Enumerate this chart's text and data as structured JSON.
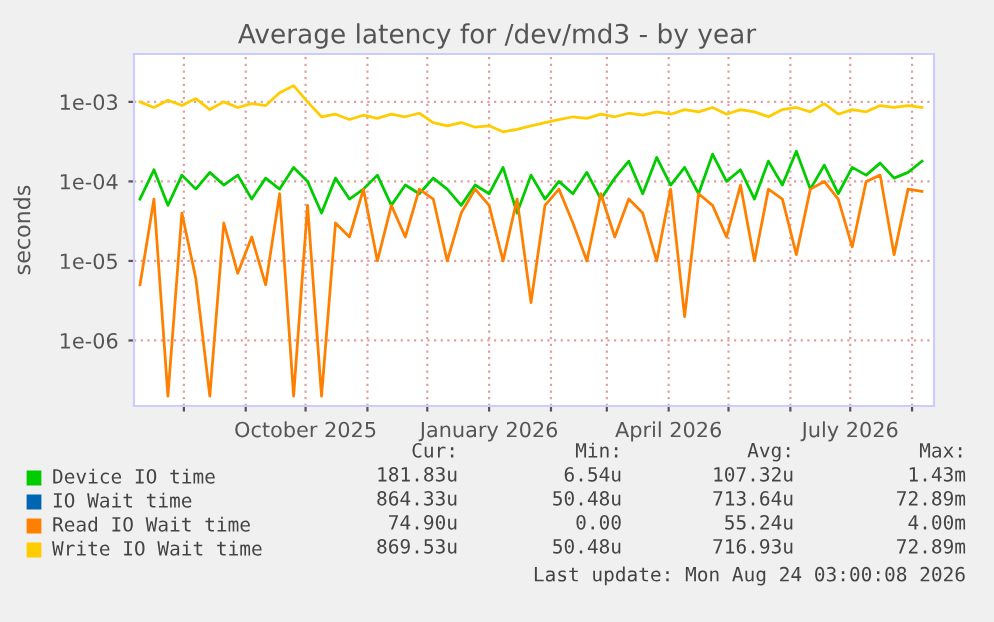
{
  "chart_data": {
    "type": "line",
    "title": "Average latency for /dev/md3 - by year",
    "ylabel": "seconds",
    "log": true,
    "grid": true,
    "legend": "bottom",
    "x": [
      "2025-07-10",
      "2025-07-17",
      "2025-07-24",
      "2025-07-31",
      "2025-08-07",
      "2025-08-14",
      "2025-08-21",
      "2025-08-28",
      "2025-09-04",
      "2025-09-11",
      "2025-09-18",
      "2025-09-25",
      "2025-10-02",
      "2025-10-09",
      "2025-10-16",
      "2025-10-23",
      "2025-10-30",
      "2025-11-06",
      "2025-11-13",
      "2025-11-20",
      "2025-11-27",
      "2025-12-04",
      "2025-12-11",
      "2025-12-18",
      "2025-12-25",
      "2026-01-01",
      "2026-01-08",
      "2026-01-15",
      "2026-01-22",
      "2026-01-29",
      "2026-02-05",
      "2026-02-12",
      "2026-02-19",
      "2026-02-26",
      "2026-03-05",
      "2026-03-12",
      "2026-03-19",
      "2026-03-26",
      "2026-04-02",
      "2026-04-09",
      "2026-04-16",
      "2026-04-23",
      "2026-04-30",
      "2026-05-07",
      "2026-05-14",
      "2026-05-21",
      "2026-05-28",
      "2026-06-04",
      "2026-06-11",
      "2026-06-18",
      "2026-06-25",
      "2026-07-02",
      "2026-07-09",
      "2026-07-16",
      "2026-07-23",
      "2026-07-30",
      "2026-08-06"
    ],
    "series": [
      {
        "name": "Device IO time",
        "color": "#00cc00",
        "values": [
          6e-05,
          0.00014,
          5e-05,
          0.00012,
          8e-05,
          0.00013,
          9e-05,
          0.00012,
          6e-05,
          0.00011,
          8e-05,
          0.00015,
          0.0001,
          4e-05,
          0.00011,
          6e-05,
          8e-05,
          0.00012,
          5e-05,
          9e-05,
          7e-05,
          0.00011,
          8e-05,
          5e-05,
          9e-05,
          7e-05,
          0.00015,
          4e-05,
          0.00012,
          6e-05,
          0.0001,
          7e-05,
          0.00013,
          6e-05,
          0.00011,
          0.00018,
          7e-05,
          0.0002,
          9e-05,
          0.00015,
          7e-05,
          0.00022,
          0.0001,
          0.00014,
          6e-05,
          0.00018,
          9e-05,
          0.00024,
          8e-05,
          0.00016,
          7e-05,
          0.00015,
          0.00012,
          0.00017,
          0.00011,
          0.00013,
          0.00018
        ]
      },
      {
        "name": "IO Wait time",
        "color": "#0066b3",
        "values": [
          null,
          null,
          null,
          null,
          null,
          null,
          null,
          null,
          null,
          null,
          null,
          null,
          null,
          null,
          null,
          null,
          null,
          null,
          null,
          null,
          null,
          null,
          null,
          null,
          null,
          null,
          null,
          null,
          null,
          null,
          null,
          null,
          null,
          null,
          null,
          null,
          null,
          null,
          null,
          null,
          null,
          null,
          null,
          null,
          null,
          null,
          null,
          null,
          null,
          null,
          null,
          null,
          null,
          null,
          null,
          null,
          null
        ]
      },
      {
        "name": "Read IO Wait time",
        "color": "#ff8000",
        "values": [
          5e-06,
          6e-05,
          2e-07,
          4e-05,
          6e-06,
          2e-07,
          3e-05,
          7e-06,
          2e-05,
          5e-06,
          7e-05,
          2e-07,
          5e-05,
          2e-07,
          3e-05,
          2e-05,
          8e-05,
          1e-05,
          5e-05,
          2e-05,
          8e-05,
          6e-05,
          1e-05,
          4e-05,
          8e-05,
          5e-05,
          1e-05,
          6e-05,
          3e-06,
          5e-05,
          8e-05,
          3e-05,
          1e-05,
          7e-05,
          2e-05,
          6e-05,
          4e-05,
          1e-05,
          8e-05,
          2e-06,
          7e-05,
          5e-05,
          2e-05,
          9e-05,
          1e-05,
          8e-05,
          6e-05,
          1.2e-05,
          8e-05,
          0.0001,
          6e-05,
          1.5e-05,
          0.0001,
          0.00012,
          1.2e-05,
          8e-05,
          7.5e-05
        ]
      },
      {
        "name": "Write IO Wait time",
        "color": "#ffcc00",
        "values": [
          0.001,
          0.00085,
          0.00105,
          0.0009,
          0.0011,
          0.0008,
          0.001,
          0.00085,
          0.00095,
          0.0009,
          0.0013,
          0.0016,
          0.001,
          0.00065,
          0.0007,
          0.0006,
          0.00068,
          0.00062,
          0.0007,
          0.00065,
          0.00072,
          0.00055,
          0.0005,
          0.00055,
          0.00048,
          0.0005,
          0.00042,
          0.00045,
          0.0005,
          0.00055,
          0.0006,
          0.00065,
          0.00062,
          0.0007,
          0.00065,
          0.00072,
          0.00068,
          0.00075,
          0.0007,
          0.0008,
          0.00075,
          0.00085,
          0.0007,
          0.0008,
          0.00075,
          0.00065,
          0.0008,
          0.00085,
          0.00075,
          0.00095,
          0.0007,
          0.0008,
          0.00075,
          0.0009,
          0.00085,
          0.0009,
          0.00085
        ]
      }
    ],
    "xlim": [
      "2025-07-07",
      "2026-08-12"
    ],
    "xticks": [
      {
        "value": "2025-08-01",
        "label": null
      },
      {
        "value": "2025-09-01",
        "label": null
      },
      {
        "value": "2025-10-01",
        "label": "October 2025"
      },
      {
        "value": "2025-11-01",
        "label": null
      },
      {
        "value": "2025-12-01",
        "label": null
      },
      {
        "value": "2026-01-01",
        "label": "January 2026"
      },
      {
        "value": "2026-02-01",
        "label": null
      },
      {
        "value": "2026-03-01",
        "label": null
      },
      {
        "value": "2026-04-01",
        "label": "April 2026"
      },
      {
        "value": "2026-05-01",
        "label": null
      },
      {
        "value": "2026-06-01",
        "label": null
      },
      {
        "value": "2026-07-01",
        "label": "July 2026"
      },
      {
        "value": "2026-08-01",
        "label": null
      }
    ],
    "ylim": [
      1.5e-07,
      0.004
    ],
    "yticks": [
      {
        "value": 1e-06,
        "label": "1e-06"
      },
      {
        "value": 1e-05,
        "label": "1e-05"
      },
      {
        "value": 0.0001,
        "label": "1e-04"
      },
      {
        "value": 0.001,
        "label": "1e-03"
      }
    ],
    "annotations": [
      "Cur:",
      "Min:",
      "Avg:",
      "Max:",
      "181.83u",
      "6.54u",
      "107.32u",
      "1.43m",
      "864.33u",
      "50.48u",
      "713.64u",
      "72.89m",
      "74.90u",
      "0.00",
      "55.24u",
      "4.00m",
      "869.53u",
      "50.48u",
      "716.93u",
      "72.89m",
      "Last update: Mon Aug 24 03:00:08 2026"
    ]
  }
}
